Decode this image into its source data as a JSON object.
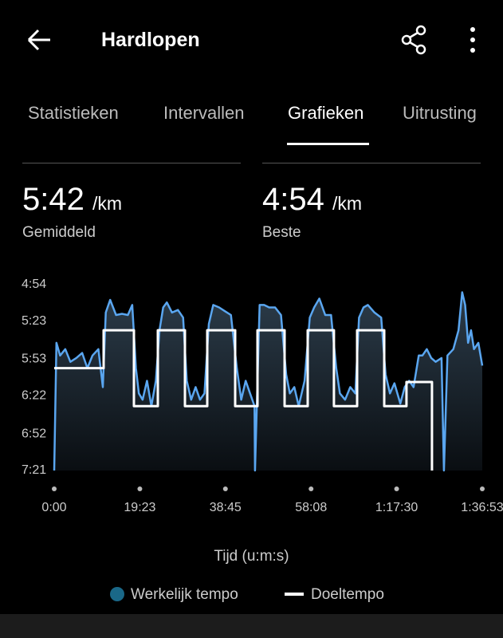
{
  "header": {
    "title": "Hardlopen"
  },
  "tabs": [
    "Statistieken",
    "Intervallen",
    "Grafieken",
    "Uitrusting"
  ],
  "active_tab": 2,
  "stats": [
    {
      "value": "5:42",
      "unit": "/km",
      "label": "Gemiddeld"
    },
    {
      "value": "4:54",
      "unit": "/km",
      "label": "Beste"
    }
  ],
  "chart_data": {
    "type": "line",
    "x_label": "Tijd (u:m:s)",
    "xlim": [
      0,
      5813
    ],
    "xticks": [
      {
        "value": 0,
        "label": "0:00"
      },
      {
        "value": 1163,
        "label": "19:23"
      },
      {
        "value": 2325,
        "label": "38:45"
      },
      {
        "value": 3488,
        "label": "58:08"
      },
      {
        "value": 4650,
        "label": "1:17:30"
      },
      {
        "value": 5813,
        "label": "1:36:53"
      }
    ],
    "ylim": [
      441,
      294
    ],
    "yticks": [
      {
        "value": 294,
        "label": "4:54"
      },
      {
        "value": 323,
        "label": "5:23"
      },
      {
        "value": 353,
        "label": "5:53"
      },
      {
        "value": 382,
        "label": "6:22"
      },
      {
        "value": 412,
        "label": "6:52"
      },
      {
        "value": 441,
        "label": "7:21"
      }
    ],
    "series": [
      {
        "name": "Werkelijk tempo",
        "color": "#5aa6f0",
        "x": [
          0,
          30,
          80,
          150,
          220,
          300,
          380,
          450,
          520,
          600,
          660,
          700,
          760,
          840,
          920,
          1000,
          1060,
          1110,
          1150,
          1200,
          1260,
          1320,
          1380,
          1430,
          1480,
          1530,
          1600,
          1680,
          1750,
          1800,
          1860,
          1920,
          1980,
          2040,
          2100,
          2160,
          2240,
          2320,
          2400,
          2480,
          2540,
          2600,
          2660,
          2720,
          2727,
          2790,
          2850,
          2920,
          3000,
          3080,
          3150,
          3200,
          3260,
          3320,
          3400,
          3470,
          3530,
          3600,
          3680,
          3760,
          3830,
          3880,
          3950,
          4020,
          4090,
          4140,
          4200,
          4260,
          4350,
          4440,
          4500,
          4560,
          4620,
          4700,
          4760,
          4820,
          4880,
          4950,
          5000,
          5060,
          5120,
          5180,
          5260,
          5292,
          5340,
          5420,
          5490,
          5540,
          5580,
          5620,
          5660,
          5700,
          5760,
          5813
        ],
        "values": [
          441,
          340,
          350,
          345,
          355,
          352,
          348,
          360,
          350,
          345,
          375,
          316,
          306,
          318,
          317,
          318,
          310,
          360,
          380,
          385,
          370,
          390,
          370,
          330,
          312,
          308,
          316,
          314,
          320,
          370,
          385,
          375,
          385,
          380,
          325,
          310,
          312,
          315,
          318,
          360,
          385,
          370,
          380,
          390,
          441,
          310,
          310,
          312,
          312,
          318,
          365,
          380,
          375,
          390,
          370,
          320,
          312,
          305,
          318,
          318,
          360,
          380,
          385,
          375,
          380,
          320,
          312,
          310,
          316,
          320,
          365,
          380,
          372,
          388,
          375,
          370,
          375,
          350,
          350,
          345,
          352,
          355,
          352,
          441,
          350,
          345,
          330,
          300,
          310,
          340,
          330,
          345,
          340,
          358
        ]
      },
      {
        "name": "Doeltempo",
        "color": "#ffffff",
        "x": [
          0,
          671,
          671,
          1082,
          1082,
          1407,
          1407,
          1775,
          1775,
          2078,
          2078,
          2457,
          2457,
          2760,
          2760,
          3128,
          3128,
          3442,
          3442,
          3799,
          3799,
          4113,
          4113,
          4481,
          4481,
          4784,
          4784,
          5130,
          5130
        ],
        "values": [
          360,
          360,
          330,
          330,
          390,
          390,
          330,
          330,
          390,
          390,
          330,
          330,
          390,
          390,
          330,
          330,
          390,
          390,
          330,
          330,
          390,
          390,
          330,
          330,
          390,
          390,
          371,
          371,
          441
        ]
      }
    ]
  }
}
